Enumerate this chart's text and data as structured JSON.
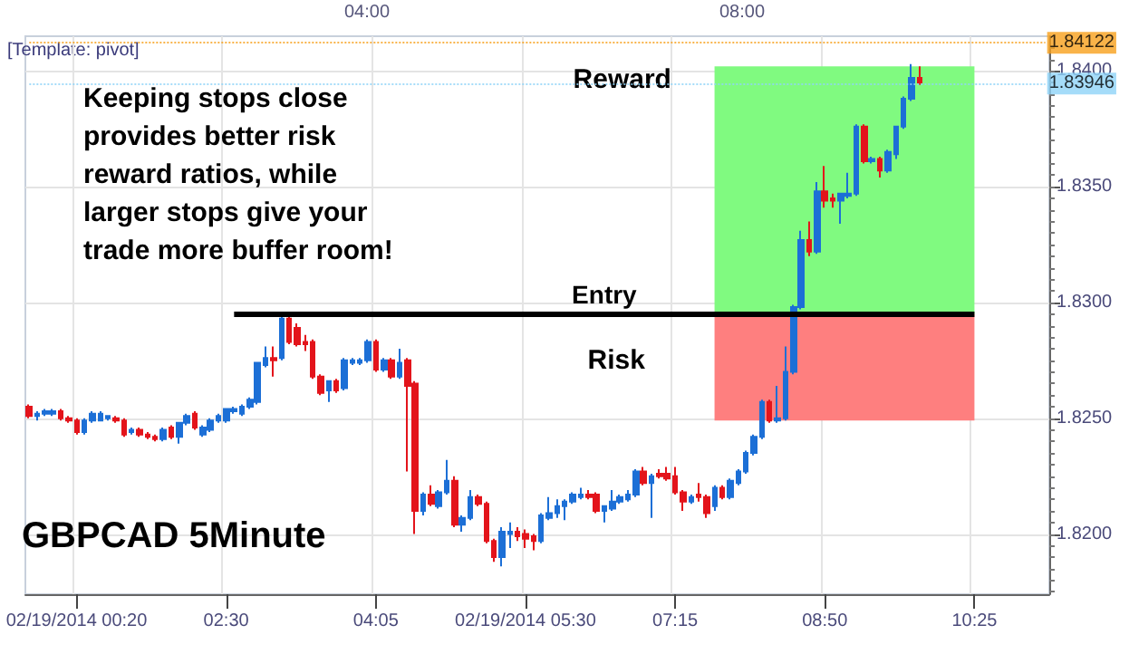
{
  "chart_data": {
    "type": "candlestick",
    "title": "GBPCAD 5Minute",
    "annotations": [
      "[Template: pivot]",
      "Keeping stops close provides better risk reward ratios, while larger stops give your trade more buffer room!",
      "04:00",
      "08:00"
    ],
    "categories": [
      null,
      null,
      null,
      null,
      null,
      null,
      "02/19/2014 00:20",
      null,
      null,
      null,
      null,
      null,
      null,
      null,
      null,
      null,
      null,
      null,
      null,
      null,
      null,
      null,
      null,
      null,
      null,
      "02:30",
      null,
      null,
      null,
      null,
      null,
      null,
      null,
      null,
      null,
      null,
      null,
      null,
      null,
      null,
      null,
      null,
      null,
      null,
      "04:05",
      null,
      null,
      null,
      null,
      null,
      null,
      null,
      null,
      null,
      null,
      null,
      null,
      null,
      null,
      null,
      null,
      null,
      null,
      "02/19/2014 05:30",
      null,
      null,
      null,
      null,
      null,
      null,
      null,
      null,
      null,
      null,
      null,
      null,
      null,
      null,
      null,
      null,
      null,
      null,
      "07:15",
      null,
      null,
      null,
      null,
      null,
      null,
      null,
      null,
      null,
      null,
      null,
      null,
      null,
      null,
      null,
      null,
      null,
      null,
      "08:50",
      null,
      null,
      null,
      null,
      null,
      null,
      null,
      null,
      null,
      null,
      null,
      null,
      null,
      null,
      null,
      null,
      null,
      null,
      "10:25",
      null,
      null,
      null,
      null,
      null,
      null,
      null,
      null,
      null
    ],
    "ohlc": [
      [
        1.8255,
        1.8256,
        1.825,
        1.8251
      ],
      [
        1.8251,
        1.8253,
        1.8249,
        1.8252
      ],
      [
        1.8252,
        1.8254,
        1.8251,
        1.8253
      ],
      [
        1.8252,
        1.8254,
        1.8251,
        1.8253
      ],
      [
        1.8253,
        1.8254,
        1.8249,
        1.825
      ],
      [
        1.825,
        1.8251,
        1.8248,
        1.8249
      ],
      [
        1.8249,
        1.825,
        1.8243,
        1.8244
      ],
      [
        1.8244,
        1.825,
        1.8243,
        1.8249
      ],
      [
        1.8249,
        1.8253,
        1.8248,
        1.8252
      ],
      [
        1.8249,
        1.8253,
        1.8249,
        1.8252
      ],
      [
        1.825,
        1.8251,
        1.8249,
        1.8251
      ],
      [
        1.825,
        1.8251,
        1.8248,
        1.8249
      ],
      [
        1.8249,
        1.825,
        1.8242,
        1.8243
      ],
      [
        1.8244,
        1.8246,
        1.8243,
        1.8245
      ],
      [
        1.8245,
        1.8246,
        1.8242,
        1.8243
      ],
      [
        1.8243,
        1.8244,
        1.8241,
        1.8242
      ],
      [
        1.8242,
        1.8243,
        1.824,
        1.8241
      ],
      [
        1.8241,
        1.8246,
        1.824,
        1.8245
      ],
      [
        1.8246,
        1.8247,
        1.8241,
        1.8242
      ],
      [
        1.8242,
        1.8248,
        1.8239,
        1.8248
      ],
      [
        1.8248,
        1.8252,
        1.8247,
        1.8251
      ],
      [
        1.8252,
        1.8253,
        1.8245,
        1.8246
      ],
      [
        1.8243,
        1.8247,
        1.8242,
        1.8246
      ],
      [
        1.8245,
        1.825,
        1.8244,
        1.8249
      ],
      [
        1.8249,
        1.8252,
        1.8248,
        1.8251
      ],
      [
        1.8249,
        1.8254,
        1.8248,
        1.8254
      ],
      [
        1.8253,
        1.8255,
        1.8252,
        1.8254
      ],
      [
        1.8252,
        1.8256,
        1.8251,
        1.8255
      ],
      [
        1.8255,
        1.8259,
        1.8254,
        1.8258
      ],
      [
        1.8257,
        1.8274,
        1.8256,
        1.8274
      ],
      [
        1.8273,
        1.8281,
        1.8272,
        1.8276
      ],
      [
        1.8276,
        1.8281,
        1.8268,
        1.8275
      ],
      [
        1.8276,
        1.8294,
        1.8275,
        1.8293
      ],
      [
        1.8293,
        1.8294,
        1.8282,
        1.8283
      ],
      [
        1.8289,
        1.8291,
        1.8281,
        1.8282
      ],
      [
        1.8283,
        1.8286,
        1.8279,
        1.8282
      ],
      [
        1.8283,
        1.8284,
        1.8267,
        1.8268
      ],
      [
        1.8268,
        1.8269,
        1.826,
        1.8261
      ],
      [
        1.8262,
        1.8266,
        1.8257,
        1.8266
      ],
      [
        1.8266,
        1.8267,
        1.8261,
        1.8262
      ],
      [
        1.8263,
        1.8276,
        1.8262,
        1.8275
      ],
      [
        1.8274,
        1.8276,
        1.8273,
        1.8275
      ],
      [
        1.8274,
        1.8276,
        1.8273,
        1.8275
      ],
      [
        1.8275,
        1.8284,
        1.8274,
        1.8283
      ],
      [
        1.8283,
        1.8284,
        1.827,
        1.8271
      ],
      [
        1.8271,
        1.8276,
        1.827,
        1.8275
      ],
      [
        1.8275,
        1.8276,
        1.8267,
        1.8268
      ],
      [
        1.8268,
        1.828,
        1.8267,
        1.8274
      ],
      [
        1.8275,
        1.8276,
        1.8227,
        1.8264
      ],
      [
        1.8265,
        1.8266,
        1.82,
        1.821
      ],
      [
        1.821,
        1.8218,
        1.8208,
        1.8217
      ],
      [
        1.8217,
        1.8221,
        1.8212,
        1.8213
      ],
      [
        1.8212,
        1.8219,
        1.8211,
        1.8218
      ],
      [
        1.8218,
        1.8232,
        1.8217,
        1.8223
      ],
      [
        1.8223,
        1.8225,
        1.8203,
        1.8204
      ],
      [
        1.8204,
        1.8208,
        1.8201,
        1.8207
      ],
      [
        1.8207,
        1.8219,
        1.8206,
        1.8216
      ],
      [
        1.8216,
        1.8217,
        1.8212,
        1.8213
      ],
      [
        1.8213,
        1.8214,
        1.8196,
        1.8197
      ],
      [
        1.8197,
        1.8198,
        1.8188,
        1.819
      ],
      [
        1.819,
        1.8203,
        1.8186,
        1.8201
      ],
      [
        1.82,
        1.8205,
        1.8194,
        1.8201
      ],
      [
        1.8201,
        1.8203,
        1.8197,
        1.8199
      ],
      [
        1.82,
        1.8202,
        1.8194,
        1.8198
      ],
      [
        1.8199,
        1.82,
        1.8193,
        1.8197
      ],
      [
        1.8197,
        1.8209,
        1.8196,
        1.8208
      ],
      [
        1.8207,
        1.8216,
        1.8206,
        1.8209
      ],
      [
        1.8209,
        1.8215,
        1.8207,
        1.8212
      ],
      [
        1.8212,
        1.8215,
        1.8206,
        1.8214
      ],
      [
        1.8214,
        1.8218,
        1.8213,
        1.8217
      ],
      [
        1.8216,
        1.822,
        1.8215,
        1.8217
      ],
      [
        1.8217,
        1.8219,
        1.8215,
        1.8216
      ],
      [
        1.8217,
        1.8218,
        1.8209,
        1.821
      ],
      [
        1.821,
        1.8212,
        1.8205,
        1.8212
      ],
      [
        1.8211,
        1.8219,
        1.821,
        1.8214
      ],
      [
        1.8214,
        1.8217,
        1.8213,
        1.8216
      ],
      [
        1.8215,
        1.8219,
        1.8214,
        1.8217
      ],
      [
        1.8217,
        1.8228,
        1.8216,
        1.8227
      ],
      [
        1.8227,
        1.8229,
        1.8221,
        1.8222
      ],
      [
        1.8222,
        1.8226,
        1.8207,
        1.8225
      ],
      [
        1.8226,
        1.8228,
        1.8224,
        1.8225
      ],
      [
        1.8226,
        1.8229,
        1.8223,
        1.8224
      ],
      [
        1.8225,
        1.8229,
        1.8217,
        1.8218
      ],
      [
        1.8218,
        1.8219,
        1.821,
        1.8214
      ],
      [
        1.8214,
        1.8217,
        1.8213,
        1.8216
      ],
      [
        1.8217,
        1.8222,
        1.8214,
        1.8216
      ],
      [
        1.8216,
        1.8217,
        1.8207,
        1.8209
      ],
      [
        1.8212,
        1.8221,
        1.821,
        1.822
      ],
      [
        1.822,
        1.8221,
        1.8215,
        1.8216
      ],
      [
        1.8216,
        1.8224,
        1.8215,
        1.8223
      ],
      [
        1.8222,
        1.8228,
        1.8221,
        1.8227
      ],
      [
        1.8227,
        1.8236,
        1.8226,
        1.8235
      ],
      [
        1.8235,
        1.8243,
        1.8234,
        1.8242
      ],
      [
        1.8242,
        1.8258,
        1.8241,
        1.8257
      ],
      [
        1.8257,
        1.8258,
        1.8248,
        1.8249
      ],
      [
        1.8249,
        1.8264,
        1.8248,
        1.825
      ],
      [
        1.825,
        1.8281,
        1.8249,
        1.827
      ],
      [
        1.827,
        1.8299,
        1.8269,
        1.8298
      ],
      [
        1.8298,
        1.8331,
        1.8297,
        1.8327
      ],
      [
        1.8327,
        1.8335,
        1.832,
        1.8322
      ],
      [
        1.8322,
        1.8352,
        1.8321,
        1.8348
      ],
      [
        1.8348,
        1.8359,
        1.8341,
        1.8344
      ],
      [
        1.8345,
        1.8347,
        1.8341,
        1.8344
      ],
      [
        1.8344,
        1.8347,
        1.8334,
        1.8347
      ],
      [
        1.8346,
        1.8356,
        1.8345,
        1.8347
      ],
      [
        1.8347,
        1.8377,
        1.8346,
        1.8376
      ],
      [
        1.8376,
        1.8377,
        1.836,
        1.8361
      ],
      [
        1.8361,
        1.8363,
        1.836,
        1.8362
      ],
      [
        1.8362,
        1.8363,
        1.8354,
        1.8357
      ],
      [
        1.8357,
        1.8366,
        1.8356,
        1.8365
      ],
      [
        1.8364,
        1.8376,
        1.8362,
        1.8376
      ],
      [
        1.8376,
        1.8389,
        1.8375,
        1.8388
      ],
      [
        1.8388,
        1.8403,
        1.8387,
        1.8397
      ],
      [
        1.8397,
        1.8402,
        1.8394,
        1.8395
      ],
      null,
      null,
      null,
      null,
      null,
      null,
      null,
      null,
      null,
      null,
      null,
      null,
      null,
      null,
      null,
      null
    ],
    "colors": [
      "#e3141b",
      "#1c6fd6",
      "#1c6fd6",
      "#1c6fd6",
      "#e3141b",
      "#e3141b",
      "#e3141b",
      "#1c6fd6",
      "#1c6fd6",
      "#1c6fd6",
      "#1c6fd6",
      "#e3141b",
      "#e3141b",
      "#1c6fd6",
      "#e3141b",
      "#e3141b",
      "#e3141b",
      "#1c6fd6",
      "#e3141b",
      "#1c6fd6",
      "#1c6fd6",
      "#e3141b",
      "#1c6fd6",
      "#1c6fd6",
      "#1c6fd6",
      "#1c6fd6",
      "#1c6fd6",
      "#1c6fd6",
      "#1c6fd6",
      "#1c6fd6",
      "#1c6fd6",
      "#e3141b",
      "#1c6fd6",
      "#e3141b",
      "#e3141b",
      "#e3141b",
      "#e3141b",
      "#e3141b",
      "#1c6fd6",
      "#e3141b",
      "#1c6fd6",
      "#1c6fd6",
      "#1c6fd6",
      "#1c6fd6",
      "#e3141b",
      "#1c6fd6",
      "#e3141b",
      "#1c6fd6",
      "#e3141b",
      "#e3141b",
      "#1c6fd6",
      "#e3141b",
      "#1c6fd6",
      "#1c6fd6",
      "#e3141b",
      "#1c6fd6",
      "#1c6fd6",
      "#e3141b",
      "#e3141b",
      "#e3141b",
      "#1c6fd6",
      "#1c6fd6",
      "#e3141b",
      "#e3141b",
      "#e3141b",
      "#1c6fd6",
      "#1c6fd6",
      "#1c6fd6",
      "#1c6fd6",
      "#1c6fd6",
      "#1c6fd6",
      "#e3141b",
      "#e3141b",
      "#1c6fd6",
      "#1c6fd6",
      "#1c6fd6",
      "#1c6fd6",
      "#1c6fd6",
      "#e3141b",
      "#1c6fd6",
      "#e3141b",
      "#e3141b",
      "#e3141b",
      "#e3141b",
      "#1c6fd6",
      "#e3141b",
      "#e3141b",
      "#1c6fd6",
      "#e3141b",
      "#1c6fd6",
      "#1c6fd6",
      "#1c6fd6",
      "#1c6fd6",
      "#1c6fd6",
      "#e3141b",
      "#1c6fd6",
      "#1c6fd6",
      "#1c6fd6",
      "#1c6fd6",
      "#e3141b",
      "#1c6fd6",
      "#e3141b",
      "#e3141b",
      "#1c6fd6",
      "#1c6fd6",
      "#1c6fd6",
      "#e3141b",
      "#1c6fd6",
      "#e3141b",
      "#1c6fd6",
      "#1c6fd6",
      "#1c6fd6",
      "#1c6fd6",
      "#e3141b",
      null,
      null,
      null,
      null,
      null,
      null,
      null,
      null,
      null,
      null,
      null,
      null,
      null,
      null,
      null,
      null
    ],
    "ylim": [
      1.8174,
      1.8415
    ],
    "yticks": [
      {
        "value": 1.8175,
        "label": null
      },
      {
        "value": 1.818,
        "label": null
      },
      {
        "value": 1.8185,
        "label": null
      },
      {
        "value": 1.819,
        "label": null
      },
      {
        "value": 1.8195,
        "label": null
      },
      {
        "value": 1.82,
        "label": "1.8200"
      },
      {
        "value": 1.8205,
        "label": null
      },
      {
        "value": 1.821,
        "label": null
      },
      {
        "value": 1.8215,
        "label": null
      },
      {
        "value": 1.822,
        "label": null
      },
      {
        "value": 1.8225,
        "label": null
      },
      {
        "value": 1.823,
        "label": null
      },
      {
        "value": 1.8235,
        "label": null
      },
      {
        "value": 1.824,
        "label": null
      },
      {
        "value": 1.8245,
        "label": null
      },
      {
        "value": 1.825,
        "label": "1.8250"
      },
      {
        "value": 1.8255,
        "label": null
      },
      {
        "value": 1.826,
        "label": null
      },
      {
        "value": 1.8265,
        "label": null
      },
      {
        "value": 1.827,
        "label": null
      },
      {
        "value": 1.8275,
        "label": null
      },
      {
        "value": 1.828,
        "label": null
      },
      {
        "value": 1.8285,
        "label": null
      },
      {
        "value": 1.829,
        "label": null
      },
      {
        "value": 1.8295,
        "label": null
      },
      {
        "value": 1.83,
        "label": "1.8300"
      },
      {
        "value": 1.8305,
        "label": null
      },
      {
        "value": 1.831,
        "label": null
      },
      {
        "value": 1.8315,
        "label": null
      },
      {
        "value": 1.832,
        "label": null
      },
      {
        "value": 1.8325,
        "label": null
      },
      {
        "value": 1.833,
        "label": null
      },
      {
        "value": 1.8335,
        "label": null
      },
      {
        "value": 1.834,
        "label": null
      },
      {
        "value": 1.8345,
        "label": null
      },
      {
        "value": 1.835,
        "label": "1.8350"
      },
      {
        "value": 1.8355,
        "label": null
      },
      {
        "value": 1.836,
        "label": null
      },
      {
        "value": 1.8365,
        "label": null
      },
      {
        "value": 1.837,
        "label": null
      },
      {
        "value": 1.8375,
        "label": null
      },
      {
        "value": 1.838,
        "label": null
      },
      {
        "value": 1.8385,
        "label": null
      },
      {
        "value": 1.839,
        "label": null
      },
      {
        "value": 1.8395,
        "label": null
      },
      {
        "value": 1.84,
        "label": "1.8400"
      },
      {
        "value": 1.8405,
        "label": null
      },
      {
        "value": 1.841,
        "label": null
      }
    ],
    "grid": true,
    "ref_lines": [
      {
        "axis": "y",
        "value": 1.8295,
        "label": "Entry",
        "color": "#000000",
        "line_style": "solid"
      },
      {
        "axis": "y",
        "value": 1.84122,
        "label": "1.84122",
        "color": "#f7a01c",
        "line_style": "dotted"
      },
      {
        "axis": "y",
        "value": 1.83946,
        "label": "1.83946",
        "color": "#8ed3f7",
        "line_style": "dotted"
      }
    ],
    "bands": [
      {
        "axis": "y",
        "from": 1.8295,
        "to": 1.8402,
        "label": "Reward",
        "color": "#80fa80"
      },
      {
        "axis": "y",
        "from": 1.8249,
        "to": 1.8295,
        "label": "Risk",
        "color": "#fe7f7f"
      }
    ]
  }
}
